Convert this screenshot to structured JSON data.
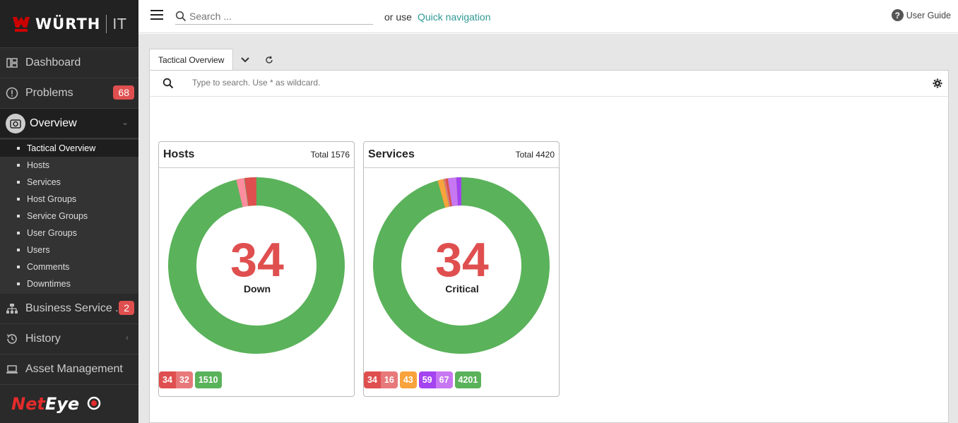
{
  "brand": {
    "logo_word": "WÜRTH",
    "logo_suffix": "IT",
    "footer_logo_a": "Net",
    "footer_logo_b": "Eye"
  },
  "sidebar": {
    "items": [
      {
        "label": "Dashboard",
        "icon": "dashboard-icon"
      },
      {
        "label": "Problems",
        "icon": "alert-circle-icon",
        "badge": "68"
      },
      {
        "label": "Overview",
        "icon": "camera-icon"
      },
      {
        "label": "Business Service ...",
        "icon": "sitemap-icon",
        "badge": "2"
      },
      {
        "label": "History",
        "icon": "history-icon"
      },
      {
        "label": "Asset Management",
        "icon": "laptop-icon"
      }
    ],
    "overview_sub": [
      "Tactical Overview",
      "Hosts",
      "Services",
      "Host Groups",
      "Service Groups",
      "User Groups",
      "Users",
      "Comments",
      "Downtimes"
    ]
  },
  "topbar": {
    "search_placeholder": "Search ...",
    "or_use": "or use",
    "quick_nav": "Quick navigation",
    "user_guide": "User Guide"
  },
  "tabs": {
    "active": "Tactical Overview"
  },
  "filter": {
    "placeholder": "Type to search. Use * as wildcard."
  },
  "hosts": {
    "title": "Hosts",
    "total": "Total 1576",
    "center_value": "34",
    "center_label": "Down",
    "badges": [
      [
        "34",
        "32"
      ],
      [
        "1510"
      ]
    ]
  },
  "services": {
    "title": "Services",
    "total": "Total 4420",
    "center_value": "34",
    "center_label": "Critical",
    "badges": [
      [
        "34",
        "16"
      ],
      [
        "43"
      ],
      [
        "59",
        "67"
      ],
      [
        "4201"
      ]
    ]
  },
  "colors": {
    "green": "#5ab25a",
    "red": "#e04f4f",
    "red_soft": "#ff8da0",
    "red_handled": "#e7797b",
    "orange": "#f9a33c",
    "purple": "#a443f0",
    "purple_soft": "#c877f2",
    "teal": "#2f9a94"
  }
}
